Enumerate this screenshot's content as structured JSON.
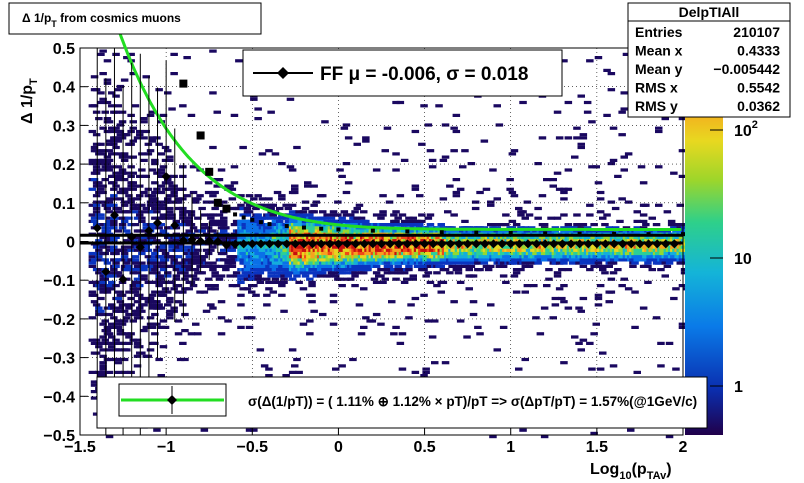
{
  "chart_data": {
    "type": "heatmap",
    "title": "Δ 1/p_T from cosmics muons",
    "title_main": "Δ 1/p",
    "title_sub": "T",
    "title_rest": " from cosmics muons",
    "xlabel_main": "Log",
    "xlabel_sub1": "10",
    "xlabel_mid": "(p",
    "xlabel_sub2": "TAv",
    "xlabel_end": ")",
    "ylabel_main": "Δ 1/p",
    "ylabel_sub": "T",
    "xlim": [
      -1.5,
      2.0
    ],
    "ylim": [
      -0.5,
      0.5
    ],
    "x_ticks": [
      "−1.5",
      "−1",
      "−0.5",
      "0",
      "0.5",
      "1",
      "1.5",
      "2"
    ],
    "x_tick_values": [
      -1.5,
      -1,
      -0.5,
      0,
      0.5,
      1,
      1.5,
      2
    ],
    "y_ticks": [
      "0.5",
      "0.4",
      "0.3",
      "0.2",
      "0.1",
      "0",
      "−0.1",
      "−0.2",
      "−0.3",
      "−0.4",
      "−0.5"
    ],
    "y_tick_values": [
      0.5,
      0.4,
      0.3,
      0.2,
      0.1,
      0,
      -0.1,
      -0.2,
      -0.3,
      -0.4,
      -0.5
    ],
    "grid": true,
    "color_scale": "log",
    "color_scale_labels": [
      {
        "base": "10",
        "exp": "2",
        "value": 100
      },
      {
        "base": "10",
        "exp": "",
        "value": 10
      },
      {
        "base": "1",
        "exp": "",
        "value": 1
      }
    ],
    "colors": {
      "fit_line": "#22dd22",
      "markers": "#000000"
    },
    "stats_box": {
      "name": "DelpTIAll",
      "rows": [
        {
          "label": "Entries",
          "value": "210107"
        },
        {
          "label": "Mean x",
          "value": "0.4333"
        },
        {
          "label": "Mean y",
          "value": "−0.005442"
        },
        {
          "label": "RMS x",
          "value": "0.5542"
        },
        {
          "label": "RMS y",
          "value": "0.0362"
        }
      ]
    },
    "legend_top": {
      "label": "FF μ = -0.006, σ =   0.018",
      "placement": "top-center"
    },
    "legend_bottom": {
      "label": "σ(Δ(1/pT)) = ( 1.11% ⊕  1.12% × pT)/pT => σ(ΔpT/pT) =  1.57%(@1GeV/c)",
      "placement": "bottom"
    },
    "mean_points": {
      "x": [
        -1.4,
        -1.35,
        -1.3,
        -1.25,
        -1.2,
        -1.15,
        -1.1,
        -1.05,
        -1.0,
        -0.95,
        -0.9,
        -0.85,
        -0.8,
        -0.75,
        -0.7,
        -0.65,
        -0.6,
        -0.55,
        -0.5,
        -0.45,
        -0.4,
        -0.35,
        -0.3,
        -0.25,
        -0.2,
        -0.15,
        -0.1,
        -0.05,
        0.0,
        0.05,
        0.1,
        0.15,
        0.2,
        0.25,
        0.3,
        0.35,
        0.4,
        0.45,
        0.5,
        0.55,
        0.6,
        0.65,
        0.7,
        0.75,
        0.8,
        0.85,
        0.9,
        0.95,
        1.0,
        1.05,
        1.1,
        1.15,
        1.2,
        1.25,
        1.3,
        1.35,
        1.4,
        1.45,
        1.5,
        1.55,
        1.6,
        1.65,
        1.7,
        1.75,
        1.8,
        1.85,
        1.9,
        1.95
      ],
      "y": [
        0.035,
        -0.078,
        0.068,
        -0.098,
        0.012,
        -0.015,
        0.028,
        0.048,
        0.168,
        0.042,
        0.003,
        0.005,
        0.001,
        0.002,
        0.0,
        -0.009,
        -0.007,
        -0.006,
        -0.006,
        -0.006,
        -0.006,
        -0.006,
        -0.006,
        -0.006,
        -0.006,
        -0.006,
        -0.006,
        -0.006,
        -0.006,
        -0.006,
        -0.006,
        -0.006,
        -0.006,
        -0.006,
        -0.006,
        -0.006,
        -0.006,
        -0.006,
        -0.006,
        -0.006,
        -0.006,
        -0.006,
        -0.006,
        -0.006,
        -0.006,
        -0.006,
        -0.006,
        -0.006,
        -0.006,
        -0.006,
        -0.006,
        -0.006,
        -0.006,
        -0.006,
        -0.006,
        -0.006,
        -0.006,
        -0.006,
        -0.006,
        -0.006,
        -0.006,
        -0.006,
        -0.006,
        -0.006,
        -0.006,
        -0.006,
        -0.006,
        -0.006
      ],
      "yerr": [
        0.5,
        0.5,
        0.5,
        0.5,
        0.45,
        0.5,
        0.4,
        0.35,
        0.3,
        0.25,
        0.2,
        0.12,
        0.08,
        0.05,
        0.03,
        0.02,
        0.01,
        0.008,
        0.005,
        0.004,
        0.003,
        0.003,
        0.002,
        0.002,
        0.002,
        0.002,
        0.002,
        0.002,
        0.002,
        0.002,
        0.002,
        0.002,
        0.002,
        0.002,
        0.002,
        0.002,
        0.002,
        0.002,
        0.002,
        0.002,
        0.002,
        0.002,
        0.002,
        0.002,
        0.002,
        0.002,
        0.002,
        0.002,
        0.002,
        0.002,
        0.002,
        0.002,
        0.002,
        0.002,
        0.002,
        0.002,
        0.002,
        0.002,
        0.002,
        0.002,
        0.002,
        0.002,
        0.002,
        0.002,
        0.002,
        0.002,
        0.002,
        0.002
      ]
    },
    "sigma_points": {
      "x": [
        -0.9,
        -0.8,
        -0.75,
        -0.7,
        -0.65,
        -0.6,
        -0.55,
        -0.5,
        -0.45,
        -0.4,
        -0.3,
        -0.2,
        -0.1,
        0.0,
        0.2,
        0.4,
        0.6,
        0.8,
        1.0,
        1.2,
        1.4,
        1.6,
        1.8,
        2.0
      ],
      "y": [
        0.408,
        0.274,
        0.18,
        0.1,
        0.085,
        0.07,
        0.062,
        0.056,
        0.05,
        0.045,
        0.04,
        0.036,
        0.033,
        0.031,
        0.028,
        0.026,
        0.024,
        0.023,
        0.022,
        0.021,
        0.02,
        0.02,
        0.019,
        0.019
      ]
    },
    "fit_curve": {
      "a": 0.0111,
      "b": 0.0112
    }
  }
}
